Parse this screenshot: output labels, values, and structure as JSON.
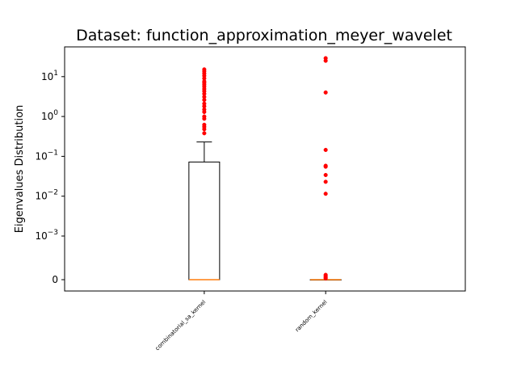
{
  "chart_data": {
    "type": "box",
    "title": "Dataset: function_approximation_meyer_wavelet",
    "xlabel": "",
    "ylabel": "Eigenvalues Distribution",
    "yscale": "symlog",
    "ylim": [
      -0.0003,
      50
    ],
    "y_ticks": [
      {
        "value": 10,
        "label": "10^1"
      },
      {
        "value": 1,
        "label": "10^0"
      },
      {
        "value": 0.1,
        "label": "10^-1"
      },
      {
        "value": 0.01,
        "label": "10^-2"
      },
      {
        "value": 0.001,
        "label": "10^-3"
      },
      {
        "value": 0,
        "label": "0"
      }
    ],
    "categories": [
      "combinatorial_sa_kernel",
      "random_kernel"
    ],
    "boxes": [
      {
        "name": "combinatorial_sa_kernel",
        "min": 0,
        "q1": 0,
        "median": 0,
        "q3": 0.072,
        "whisker_high": 0.23,
        "outliers": [
          15.2,
          13.6,
          12.0,
          10.5,
          9.0,
          7.6,
          7.0,
          6.3,
          5.6,
          4.9,
          4.3,
          3.7,
          3.1,
          2.6,
          2.1,
          1.8,
          1.5,
          1.3,
          1.0,
          0.88,
          0.62,
          0.55,
          0.48,
          0.38
        ]
      },
      {
        "name": "random_kernel",
        "min": 0,
        "q1": 0,
        "median": 0,
        "q3": 0,
        "whisker_high": 0,
        "outliers": [
          29,
          25,
          4.0,
          0.145,
          0.058,
          0.055,
          0.034,
          0.023,
          0.0115,
          0.00011,
          8e-05,
          5e-05,
          3e-05
        ]
      }
    ],
    "colors": {
      "box": "#000000",
      "median": "#ff7f0e",
      "outlier": "#ff0000"
    },
    "grid": false
  }
}
